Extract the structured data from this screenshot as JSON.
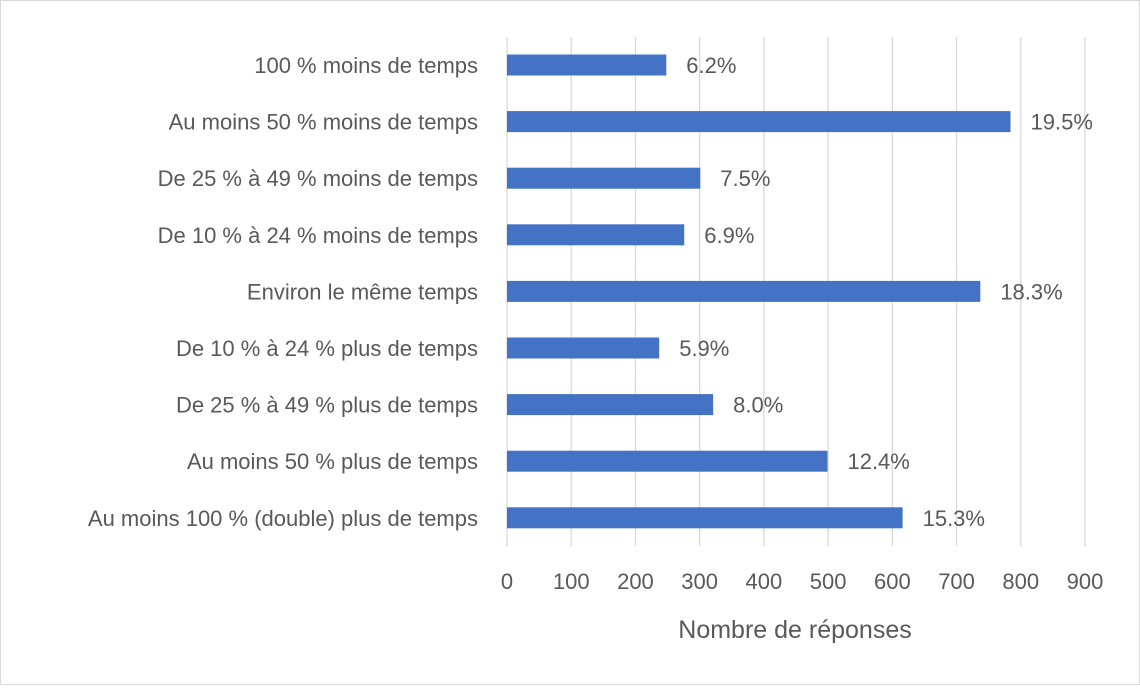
{
  "chart_data": {
    "type": "bar",
    "orientation": "horizontal",
    "categories": [
      "100 % moins de temps",
      "Au moins 50 % moins de temps",
      "De 25 % à 49 % moins de temps",
      "De 10 % à 24 % moins de temps",
      "Environ le même temps",
      "De 10 % à 24 % plus de temps",
      "De 25 % à 49 % plus de temps",
      "Au moins 50 % plus de temps",
      "Au moins 100 % (double) plus de temps"
    ],
    "values": [
      248,
      784,
      301,
      276,
      737,
      237,
      321,
      499,
      616
    ],
    "data_labels": [
      "6.2%",
      "19.5%",
      "7.5%",
      "6.9%",
      "18.3%",
      "5.9%",
      "8.0%",
      "12.4%",
      "15.3%"
    ],
    "xlabel": "Nombre de réponses",
    "ylabel": "",
    "xlim": [
      0,
      900
    ],
    "xticks": [
      0,
      100,
      200,
      300,
      400,
      500,
      600,
      700,
      800,
      900
    ],
    "grid": "vertical",
    "legend": "none",
    "colors": {
      "bar": "#4472C4",
      "grid": "#d9d9d9",
      "text": "#595959"
    }
  }
}
